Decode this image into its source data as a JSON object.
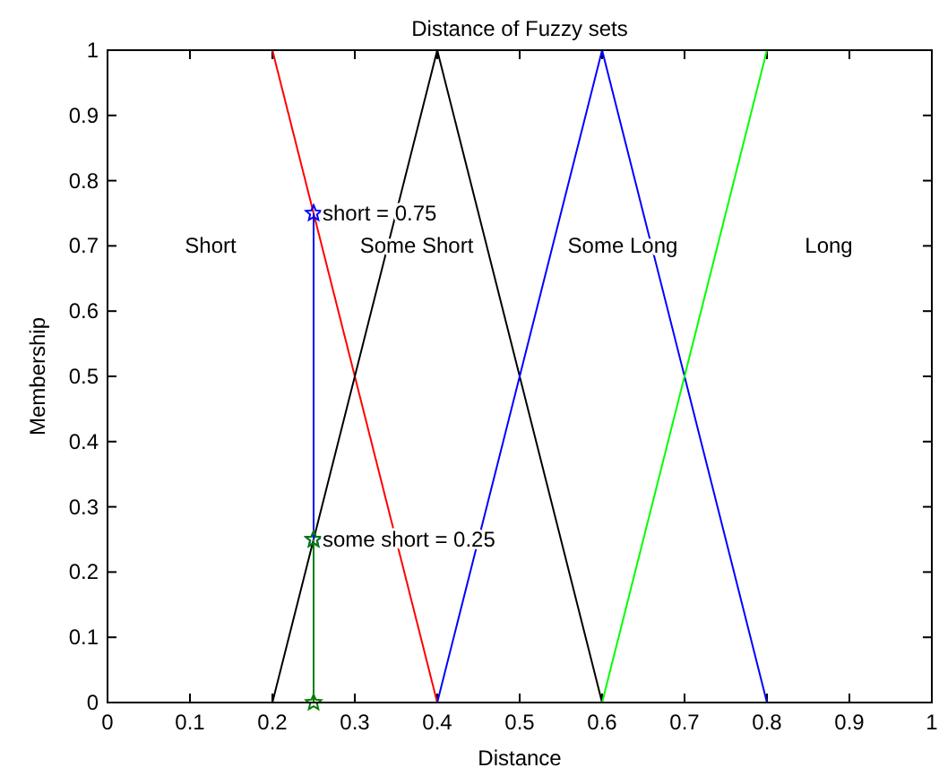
{
  "chart_data": {
    "type": "line",
    "title": "Distance of Fuzzy sets",
    "xlabel": "Distance",
    "ylabel": "Membership",
    "xlim": [
      0,
      1
    ],
    "ylim": [
      0,
      1
    ],
    "xticks": [
      0,
      0.1,
      0.2,
      0.3,
      0.4,
      0.5,
      0.6,
      0.7,
      0.8,
      0.9,
      1
    ],
    "yticks": [
      0,
      0.1,
      0.2,
      0.3,
      0.4,
      0.5,
      0.6,
      0.7,
      0.8,
      0.9,
      1
    ],
    "grid": false,
    "series": [
      {
        "color": "#ff0000",
        "x": [
          0.2,
          0.4
        ],
        "values": [
          1,
          0
        ]
      },
      {
        "color": "#000000",
        "x": [
          0.2,
          0.4,
          0.6
        ],
        "values": [
          0,
          1,
          0
        ]
      },
      {
        "color": "#0000ff",
        "x": [
          0.4,
          0.6,
          0.8
        ],
        "values": [
          0,
          1,
          0
        ]
      },
      {
        "color": "#00ff00",
        "x": [
          0.6,
          0.8
        ],
        "values": [
          0,
          1
        ]
      },
      {
        "color": "#0000ff",
        "x": [
          0.25,
          0.25
        ],
        "values": [
          0.25,
          0.75
        ],
        "marker": "star"
      },
      {
        "color": "#008000",
        "x": [
          0.25,
          0.25
        ],
        "values": [
          0,
          0.25
        ],
        "marker": "star"
      }
    ],
    "annotations": [
      {
        "text": "short = 0.75",
        "x": 0.25,
        "y": 0.75
      },
      {
        "text": "some short = 0.25",
        "x": 0.25,
        "y": 0.25
      },
      "Short",
      "Some Short",
      "Some Long",
      "Long"
    ]
  }
}
